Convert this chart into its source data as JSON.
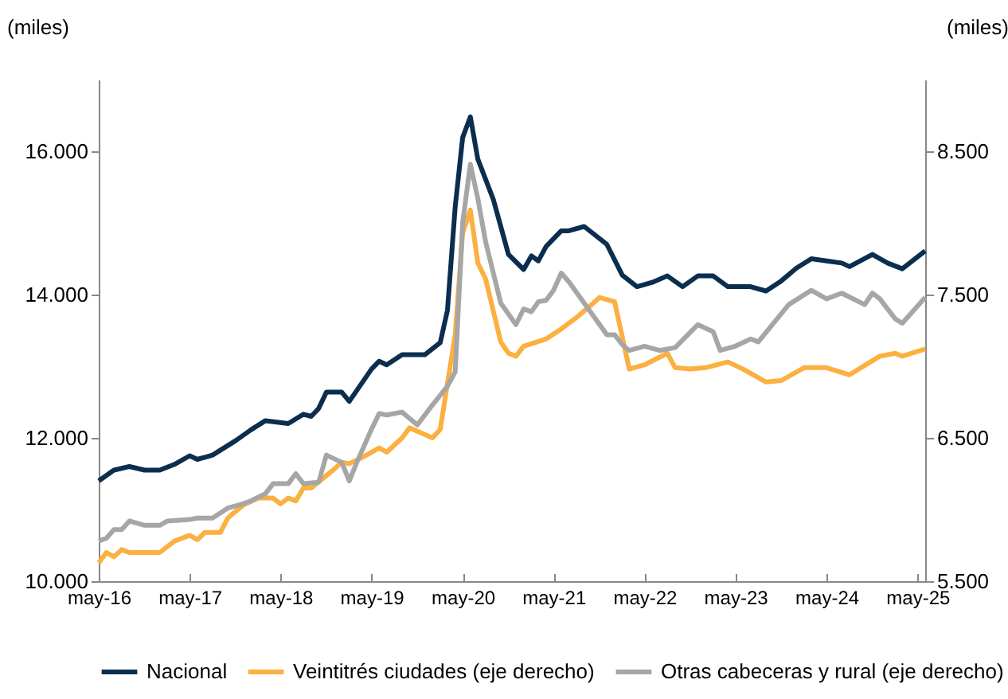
{
  "chart_data": {
    "type": "line",
    "ylabel": "(miles)",
    "y2label": "(miles)",
    "xlim": [
      "2016-05",
      "2025-06"
    ],
    "xticks": [
      {
        "value": "2016-05",
        "label": "may-16"
      },
      {
        "value": "2017-05",
        "label": "may-17"
      },
      {
        "value": "2018-05",
        "label": "may-18"
      },
      {
        "value": "2019-05",
        "label": "may-19"
      },
      {
        "value": "2020-05",
        "label": "may-20"
      },
      {
        "value": "2021-05",
        "label": "may-21"
      },
      {
        "value": "2022-05",
        "label": "may-22"
      },
      {
        "value": "2023-05",
        "label": "may-23"
      },
      {
        "value": "2024-05",
        "label": "may-24"
      },
      {
        "value": "2025-05",
        "label": "may-25"
      }
    ],
    "ylim": [
      10000,
      17000
    ],
    "yticks": [
      {
        "value": 10000,
        "label": "10.000"
      },
      {
        "value": 12000,
        "label": "12.000"
      },
      {
        "value": 14000,
        "label": "14.000"
      },
      {
        "value": 16000,
        "label": "16.000"
      }
    ],
    "y2lim": [
      5500,
      9000
    ],
    "y2ticks": [
      {
        "value": 5500,
        "label": "5.500"
      },
      {
        "value": 6500,
        "label": "6.500"
      },
      {
        "value": 7500,
        "label": "7.500"
      },
      {
        "value": 8500,
        "label": "8.500"
      }
    ],
    "grid": false,
    "legend": "bottom",
    "line_style": "solid",
    "marker": "none",
    "series": [
      {
        "name": "Nacional",
        "color": "#0b2e4f",
        "x": [
          "2016-05",
          "2016-07",
          "2016-09",
          "2016-11",
          "2017-01",
          "2017-03",
          "2017-05",
          "2017-06",
          "2017-08",
          "2017-11",
          "2018-01",
          "2018-03",
          "2018-06",
          "2018-08",
          "2018-09",
          "2018-10",
          "2018-11",
          "2019-01",
          "2019-02",
          "2019-05",
          "2019-06",
          "2019-07",
          "2019-09",
          "2019-12",
          "2020-02",
          "2020-03",
          "2020-04",
          "2020-05",
          "2020-06",
          "2020-07",
          "2020-09",
          "2020-11",
          "2021-01",
          "2021-02",
          "2021-03",
          "2021-04",
          "2021-06",
          "2021-07",
          "2021-09",
          "2021-12",
          "2022-02",
          "2022-04",
          "2022-06",
          "2022-08",
          "2022-10",
          "2022-12",
          "2023-02",
          "2023-04",
          "2023-07",
          "2023-09",
          "2023-11",
          "2024-01",
          "2024-03",
          "2024-05",
          "2024-07",
          "2024-08",
          "2024-11",
          "2025-01",
          "2025-03",
          "2025-06"
        ],
        "values": [
          11400,
          11550,
          11600,
          11550,
          11550,
          11630,
          11750,
          11700,
          11760,
          11960,
          12110,
          12240,
          12200,
          12330,
          12300,
          12410,
          12640,
          12640,
          12510,
          12960,
          13070,
          13020,
          13160,
          13160,
          13330,
          13780,
          15220,
          16190,
          16480,
          15890,
          15330,
          14560,
          14350,
          14540,
          14470,
          14670,
          14890,
          14890,
          14950,
          14700,
          14270,
          14110,
          14170,
          14260,
          14110,
          14260,
          14260,
          14110,
          14110,
          14050,
          14190,
          14370,
          14500,
          14470,
          14440,
          14390,
          14560,
          14440,
          14360,
          14610
        ]
      },
      {
        "name": "Veintitrés ciudades (eje derecho)",
        "color": "#fbb040",
        "axis": "y2",
        "x": [
          "2016-05",
          "2016-06",
          "2016-07",
          "2016-08",
          "2016-09",
          "2017-01",
          "2017-03",
          "2017-05",
          "2017-06",
          "2017-07",
          "2017-09",
          "2017-10",
          "2017-12",
          "2018-02",
          "2018-04",
          "2018-05",
          "2018-06",
          "2018-07",
          "2018-08",
          "2018-09",
          "2018-12",
          "2019-01",
          "2019-02",
          "2019-04",
          "2019-06",
          "2019-07",
          "2019-09",
          "2019-10",
          "2020-01",
          "2020-02",
          "2020-04",
          "2020-05",
          "2020-06",
          "2020-07",
          "2020-08",
          "2020-10",
          "2020-11",
          "2020-12",
          "2021-01",
          "2021-04",
          "2021-06",
          "2021-08",
          "2021-10",
          "2021-11",
          "2022-01",
          "2022-03",
          "2022-05",
          "2022-08",
          "2022-09",
          "2022-11",
          "2023-01",
          "2023-04",
          "2023-06",
          "2023-09",
          "2023-11",
          "2024-02",
          "2024-05",
          "2024-08",
          "2024-12",
          "2025-02",
          "2025-03",
          "2025-06"
        ],
        "values": [
          5630,
          5700,
          5670,
          5720,
          5700,
          5700,
          5780,
          5820,
          5790,
          5840,
          5840,
          5940,
          6030,
          6080,
          6080,
          6040,
          6080,
          6060,
          6150,
          6150,
          6280,
          6330,
          6320,
          6370,
          6430,
          6400,
          6500,
          6570,
          6500,
          6560,
          7220,
          7930,
          8090,
          7720,
          7610,
          7170,
          7090,
          7070,
          7140,
          7190,
          7260,
          7340,
          7430,
          7480,
          7450,
          6980,
          7010,
          7090,
          6990,
          6980,
          6990,
          7030,
          6980,
          6890,
          6900,
          6990,
          6990,
          6940,
          7070,
          7090,
          7070,
          7120
        ]
      },
      {
        "name": "Otras cabeceras y rural (eje derecho)",
        "color": "#a6a6a6",
        "axis": "y2",
        "x": [
          "2016-05",
          "2016-06",
          "2016-07",
          "2016-08",
          "2016-09",
          "2016-11",
          "2017-01",
          "2017-02",
          "2017-05",
          "2017-06",
          "2017-08",
          "2017-10",
          "2017-12",
          "2018-01",
          "2018-03",
          "2018-04",
          "2018-06",
          "2018-07",
          "2018-08",
          "2018-10",
          "2018-11",
          "2019-01",
          "2019-02",
          "2019-03",
          "2019-05",
          "2019-06",
          "2019-07",
          "2019-09",
          "2019-11",
          "2020-01",
          "2020-03",
          "2020-04",
          "2020-05",
          "2020-06",
          "2020-07",
          "2020-08",
          "2020-10",
          "2020-12",
          "2021-01",
          "2021-02",
          "2021-03",
          "2021-04",
          "2021-05",
          "2021-06",
          "2021-07",
          "2021-09",
          "2021-12",
          "2022-01",
          "2022-02",
          "2022-03",
          "2022-05",
          "2022-07",
          "2022-09",
          "2022-12",
          "2023-02",
          "2023-03",
          "2023-05",
          "2023-07",
          "2023-08",
          "2023-12",
          "2024-03",
          "2024-05",
          "2024-07",
          "2024-10",
          "2024-11",
          "2024-12",
          "2025-02",
          "2025-03",
          "2025-06"
        ],
        "values": [
          5780,
          5800,
          5860,
          5860,
          5920,
          5890,
          5890,
          5920,
          5930,
          5940,
          5940,
          6010,
          6040,
          6060,
          6110,
          6180,
          6180,
          6250,
          6180,
          6190,
          6380,
          6330,
          6200,
          6320,
          6560,
          6670,
          6660,
          6680,
          6590,
          6730,
          6860,
          6960,
          8000,
          8410,
          8170,
          7870,
          7440,
          7290,
          7400,
          7380,
          7450,
          7460,
          7530,
          7650,
          7590,
          7440,
          7220,
          7220,
          7150,
          7110,
          7140,
          7110,
          7130,
          7290,
          7240,
          7110,
          7140,
          7190,
          7170,
          7430,
          7530,
          7470,
          7510,
          7430,
          7510,
          7470,
          7330,
          7300,
          7480
        ]
      }
    ]
  }
}
